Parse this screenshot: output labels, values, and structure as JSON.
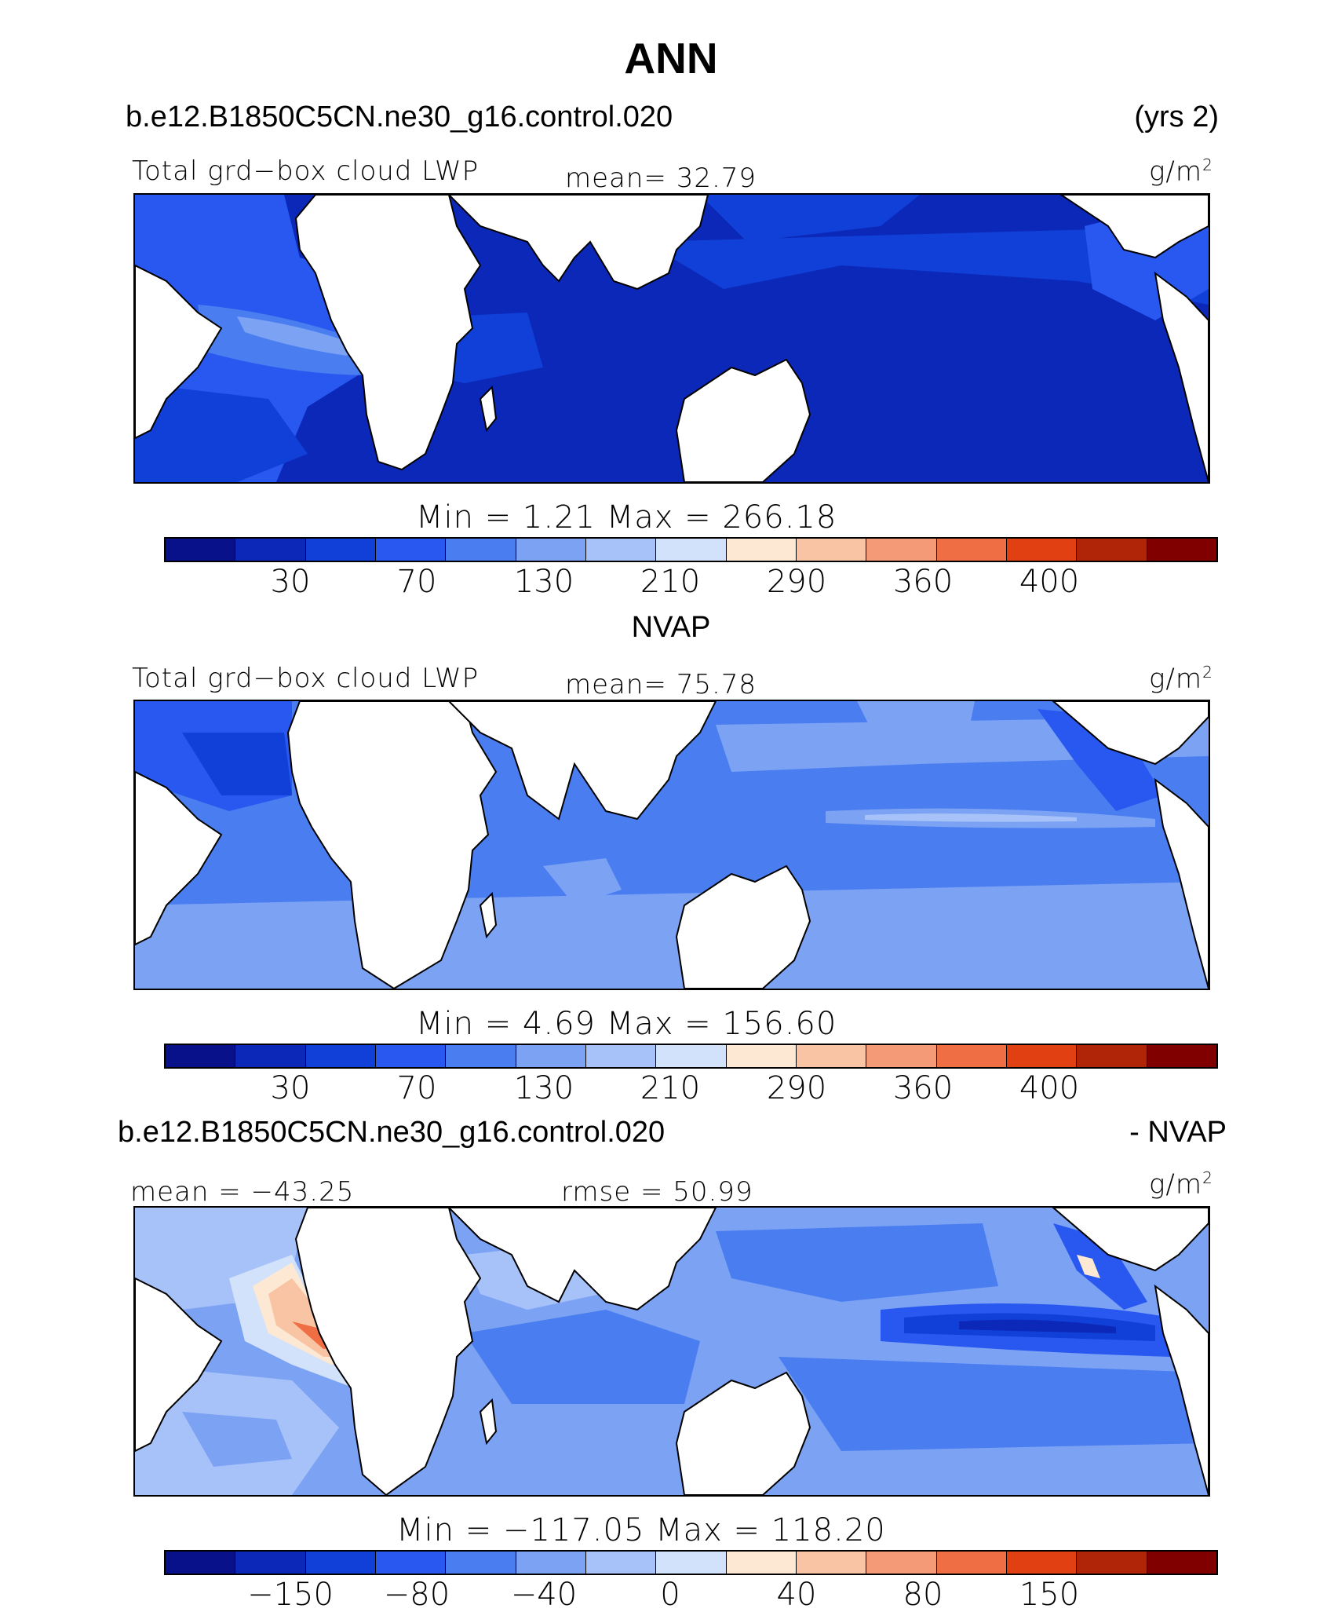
{
  "figure": {
    "title": "ANN",
    "case_name": "b.e12.B1850C5CN.ne30_g16.control.020",
    "years": "(yrs 2)"
  },
  "colors": [
    "#08108a",
    "#0c28b8",
    "#1040d8",
    "#2858f0",
    "#4a7ef0",
    "#7ca2f4",
    "#a6c2f8",
    "#d2e2fa",
    "#fde8d4",
    "#f8c4a4",
    "#f49a76",
    "#f06e44",
    "#e04012",
    "#b02408",
    "#800000"
  ],
  "panels": [
    {
      "label": "Total grd−box cloud LWP",
      "stat": "mean=  32.79",
      "units": "g/m",
      "units_sup": "2",
      "minmax": "Min =    1.21 Max = 266.18",
      "ticks": [
        "30",
        "70",
        "130",
        "210",
        "290",
        "360",
        "400"
      ]
    },
    {
      "subtitle": "NVAP",
      "label": "Total grd−box cloud LWP",
      "stat": "mean=  75.78",
      "units": "g/m",
      "units_sup": "2",
      "minmax": "Min =    4.69 Max = 156.60",
      "ticks": [
        "30",
        "70",
        "130",
        "210",
        "290",
        "360",
        "400"
      ]
    },
    {
      "header_left": "b.e12.B1850C5CN.ne30_g16.control.020",
      "header_right": "- NVAP",
      "mean_label": "mean = −43.25",
      "rmse_label": "rmse =  50.99",
      "units": "g/m",
      "units_sup": "2",
      "minmax": "Min = −117.05 Max = 118.20",
      "ticks": [
        "−150",
        "−80",
        "−40",
        "0",
        "40",
        "80",
        "150"
      ]
    }
  ]
}
